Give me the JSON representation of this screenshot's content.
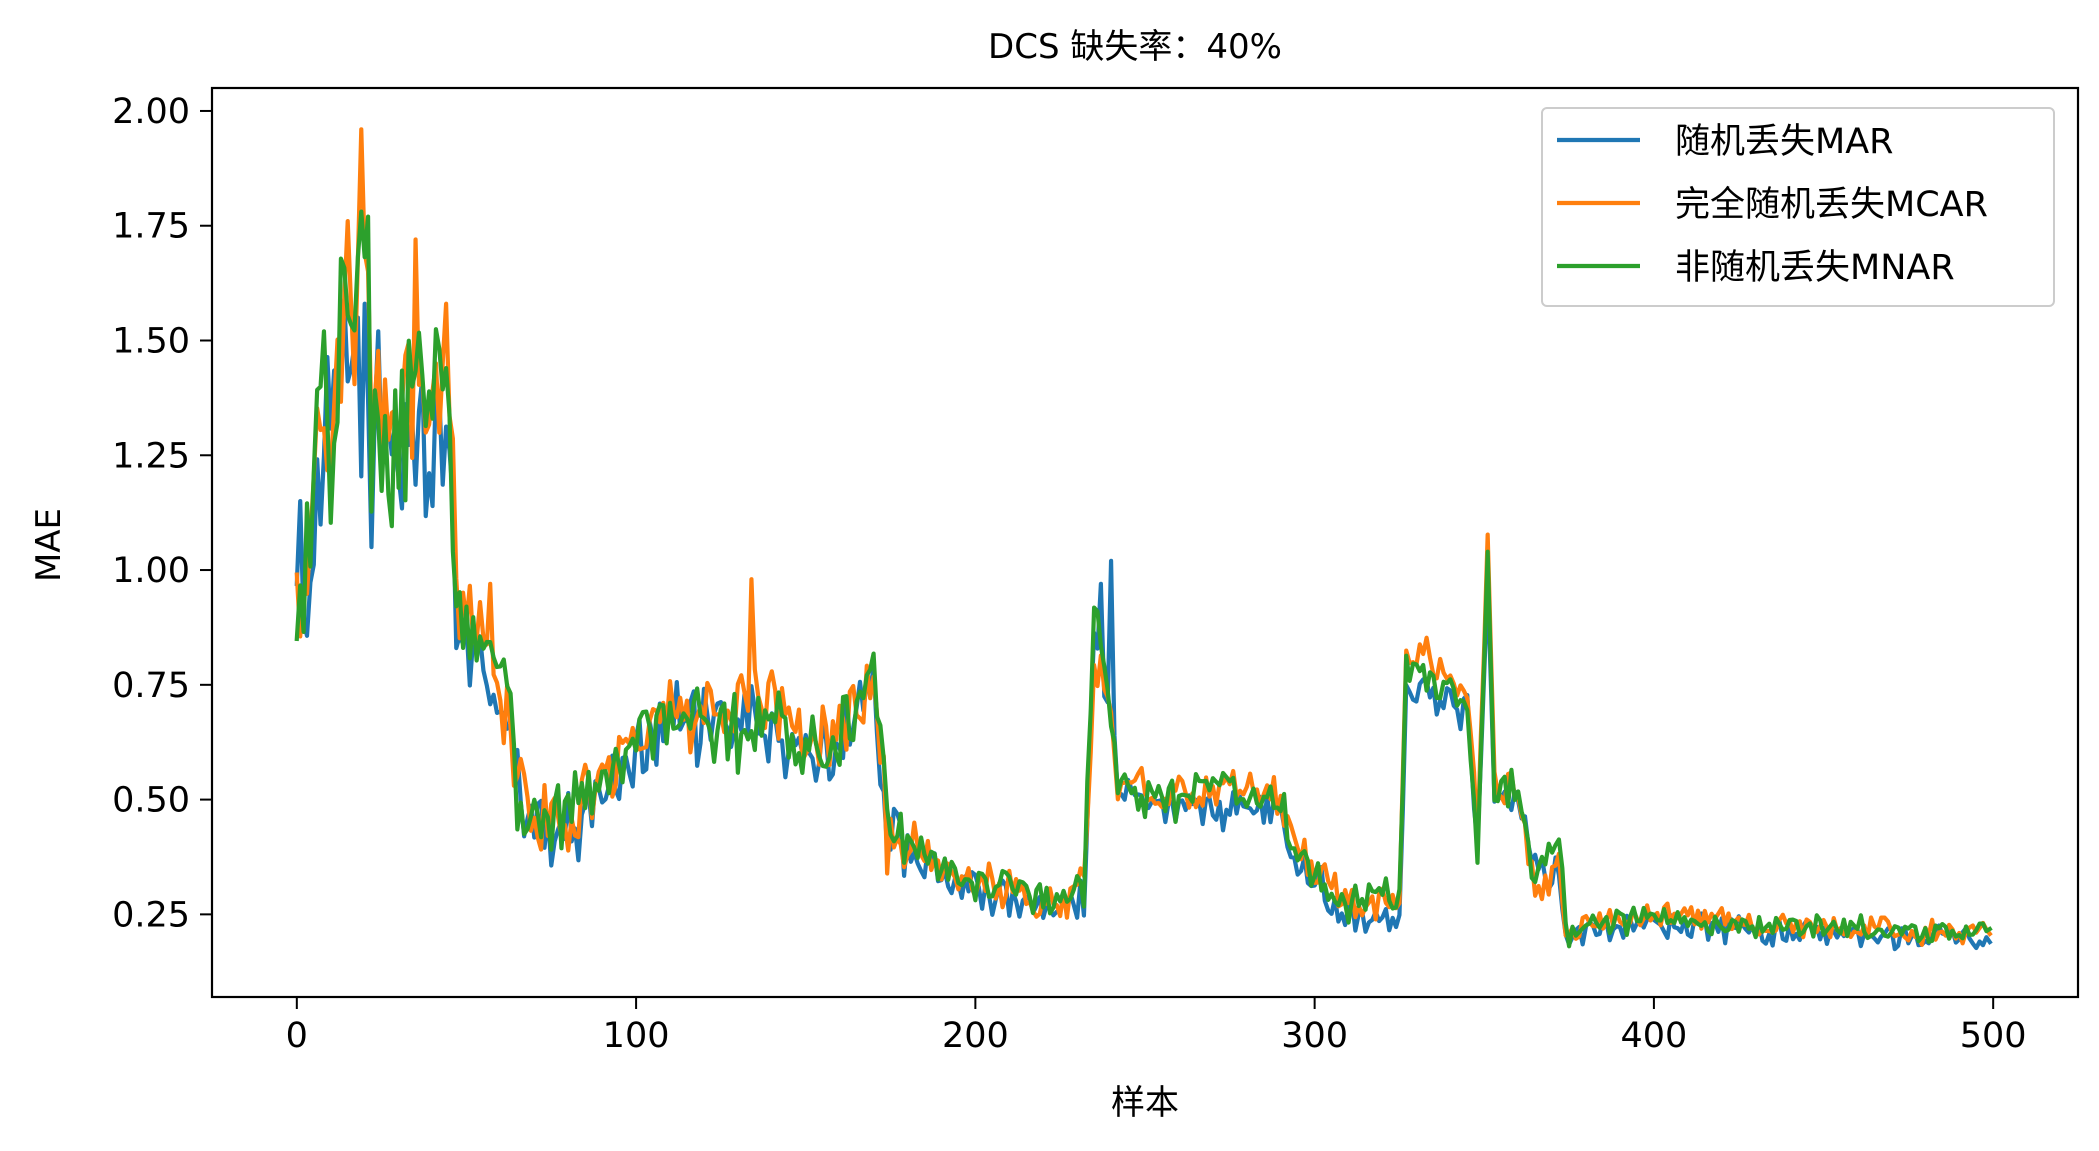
{
  "chart_data": {
    "type": "line",
    "title": "DCS 缺失率：40%",
    "xlabel": "样本",
    "ylabel": "MAE",
    "xlim": [
      -25,
      525
    ],
    "ylim": [
      0.07,
      2.05
    ],
    "xticks": [
      0,
      100,
      200,
      300,
      400,
      500
    ],
    "xtick_labels": [
      "0",
      "100",
      "200",
      "300",
      "400",
      "500"
    ],
    "yticks": [
      0.25,
      0.5,
      0.75,
      1.0,
      1.25,
      1.5,
      1.75,
      2.0
    ],
    "ytick_labels": [
      "0.25",
      "0.50",
      "0.75",
      "1.00",
      "1.25",
      "1.50",
      "1.75",
      "2.00"
    ],
    "grid": false,
    "legend_position": "top-right",
    "num_samples": 500,
    "series": [
      {
        "name": "随机丢失MAR",
        "color": "#1f77b4",
        "anchors": [
          [
            0,
            0.97
          ],
          [
            5,
            1.0
          ],
          [
            8,
            1.25
          ],
          [
            15,
            1.45
          ],
          [
            20,
            1.35
          ],
          [
            25,
            1.25
          ],
          [
            35,
            1.3
          ],
          [
            45,
            1.25
          ],
          [
            47,
            0.88
          ],
          [
            55,
            0.8
          ],
          [
            62,
            0.65
          ],
          [
            68,
            0.45
          ],
          [
            80,
            0.43
          ],
          [
            90,
            0.52
          ],
          [
            100,
            0.6
          ],
          [
            110,
            0.7
          ],
          [
            120,
            0.65
          ],
          [
            130,
            0.68
          ],
          [
            140,
            0.65
          ],
          [
            150,
            0.58
          ],
          [
            160,
            0.62
          ],
          [
            170,
            0.75
          ],
          [
            174,
            0.42
          ],
          [
            180,
            0.4
          ],
          [
            190,
            0.33
          ],
          [
            200,
            0.3
          ],
          [
            210,
            0.28
          ],
          [
            220,
            0.27
          ],
          [
            232,
            0.28
          ],
          [
            235,
            0.85
          ],
          [
            238,
            0.75
          ],
          [
            242,
            0.55
          ],
          [
            250,
            0.48
          ],
          [
            260,
            0.48
          ],
          [
            270,
            0.47
          ],
          [
            280,
            0.5
          ],
          [
            290,
            0.48
          ],
          [
            295,
            0.35
          ],
          [
            300,
            0.32
          ],
          [
            310,
            0.25
          ],
          [
            320,
            0.25
          ],
          [
            325,
            0.25
          ],
          [
            327,
            0.75
          ],
          [
            335,
            0.72
          ],
          [
            345,
            0.7
          ],
          [
            348,
            0.4
          ],
          [
            351,
            1.0
          ],
          [
            353,
            0.52
          ],
          [
            360,
            0.5
          ],
          [
            365,
            0.35
          ],
          [
            372,
            0.35
          ],
          [
            374,
            0.2
          ],
          [
            380,
            0.22
          ],
          [
            400,
            0.23
          ],
          [
            420,
            0.22
          ],
          [
            440,
            0.21
          ],
          [
            460,
            0.2
          ],
          [
            480,
            0.2
          ],
          [
            499,
            0.2
          ]
        ],
        "spikes": [
          [
            240,
            1.02
          ],
          [
            237,
            0.97
          ],
          [
            20,
            1.58
          ],
          [
            18,
            1.55
          ],
          [
            24,
            1.52
          ],
          [
            22,
            1.05
          ]
        ]
      },
      {
        "name": "完全随机丢失MCAR",
        "color": "#ff7f0e",
        "anchors": [
          [
            0,
            0.99
          ],
          [
            5,
            1.1
          ],
          [
            8,
            1.3
          ],
          [
            15,
            1.55
          ],
          [
            20,
            1.5
          ],
          [
            25,
            1.3
          ],
          [
            35,
            1.38
          ],
          [
            45,
            1.35
          ],
          [
            47,
            0.93
          ],
          [
            55,
            0.86
          ],
          [
            62,
            0.68
          ],
          [
            68,
            0.48
          ],
          [
            80,
            0.44
          ],
          [
            90,
            0.56
          ],
          [
            100,
            0.64
          ],
          [
            110,
            0.71
          ],
          [
            120,
            0.67
          ],
          [
            130,
            0.74
          ],
          [
            140,
            0.73
          ],
          [
            150,
            0.62
          ],
          [
            160,
            0.66
          ],
          [
            170,
            0.75
          ],
          [
            174,
            0.43
          ],
          [
            180,
            0.41
          ],
          [
            190,
            0.35
          ],
          [
            200,
            0.32
          ],
          [
            210,
            0.3
          ],
          [
            220,
            0.29
          ],
          [
            232,
            0.3
          ],
          [
            235,
            0.8
          ],
          [
            238,
            0.78
          ],
          [
            242,
            0.55
          ],
          [
            250,
            0.52
          ],
          [
            260,
            0.52
          ],
          [
            270,
            0.52
          ],
          [
            280,
            0.54
          ],
          [
            290,
            0.5
          ],
          [
            295,
            0.38
          ],
          [
            300,
            0.35
          ],
          [
            310,
            0.27
          ],
          [
            320,
            0.27
          ],
          [
            325,
            0.27
          ],
          [
            327,
            0.82
          ],
          [
            335,
            0.8
          ],
          [
            345,
            0.75
          ],
          [
            348,
            0.42
          ],
          [
            351,
            1.05
          ],
          [
            353,
            0.53
          ],
          [
            360,
            0.5
          ],
          [
            365,
            0.3
          ],
          [
            372,
            0.36
          ],
          [
            374,
            0.2
          ],
          [
            380,
            0.23
          ],
          [
            400,
            0.25
          ],
          [
            420,
            0.24
          ],
          [
            440,
            0.22
          ],
          [
            460,
            0.22
          ],
          [
            480,
            0.21
          ],
          [
            499,
            0.21
          ]
        ],
        "spikes": [
          [
            19,
            1.96
          ],
          [
            15,
            1.76
          ],
          [
            35,
            1.72
          ],
          [
            44,
            1.58
          ],
          [
            134,
            0.98
          ],
          [
            57,
            0.97
          ]
        ]
      },
      {
        "name": "非随机丢失MNAR",
        "color": "#2ca02c",
        "anchors": [
          [
            0,
            0.85
          ],
          [
            3,
            1.0
          ],
          [
            8,
            1.5
          ],
          [
            10,
            1.3
          ],
          [
            15,
            1.58
          ],
          [
            20,
            1.75
          ],
          [
            22,
            1.2
          ],
          [
            28,
            1.25
          ],
          [
            35,
            1.35
          ],
          [
            44,
            1.42
          ],
          [
            47,
            0.88
          ],
          [
            55,
            0.85
          ],
          [
            62,
            0.75
          ],
          [
            65,
            0.5
          ],
          [
            70,
            0.45
          ],
          [
            80,
            0.48
          ],
          [
            90,
            0.55
          ],
          [
            100,
            0.62
          ],
          [
            110,
            0.67
          ],
          [
            120,
            0.68
          ],
          [
            130,
            0.64
          ],
          [
            140,
            0.7
          ],
          [
            150,
            0.6
          ],
          [
            160,
            0.65
          ],
          [
            170,
            0.75
          ],
          [
            174,
            0.45
          ],
          [
            180,
            0.4
          ],
          [
            190,
            0.35
          ],
          [
            200,
            0.32
          ],
          [
            210,
            0.3
          ],
          [
            220,
            0.29
          ],
          [
            232,
            0.3
          ],
          [
            235,
            0.9
          ],
          [
            238,
            0.8
          ],
          [
            242,
            0.55
          ],
          [
            250,
            0.5
          ],
          [
            260,
            0.5
          ],
          [
            270,
            0.52
          ],
          [
            280,
            0.52
          ],
          [
            290,
            0.5
          ],
          [
            295,
            0.36
          ],
          [
            300,
            0.33
          ],
          [
            310,
            0.28
          ],
          [
            320,
            0.28
          ],
          [
            325,
            0.28
          ],
          [
            327,
            0.8
          ],
          [
            335,
            0.75
          ],
          [
            345,
            0.73
          ],
          [
            348,
            0.4
          ],
          [
            351,
            1.04
          ],
          [
            353,
            0.52
          ],
          [
            360,
            0.52
          ],
          [
            365,
            0.32
          ],
          [
            372,
            0.4
          ],
          [
            374,
            0.2
          ],
          [
            380,
            0.22
          ],
          [
            400,
            0.25
          ],
          [
            420,
            0.23
          ],
          [
            440,
            0.22
          ],
          [
            460,
            0.22
          ],
          [
            480,
            0.21
          ],
          [
            499,
            0.21
          ]
        ],
        "spikes": [
          [
            21,
            1.77
          ],
          [
            8,
            1.52
          ],
          [
            44,
            1.44
          ],
          [
            236,
            0.91
          ],
          [
            351,
            1.04
          ]
        ]
      }
    ]
  }
}
